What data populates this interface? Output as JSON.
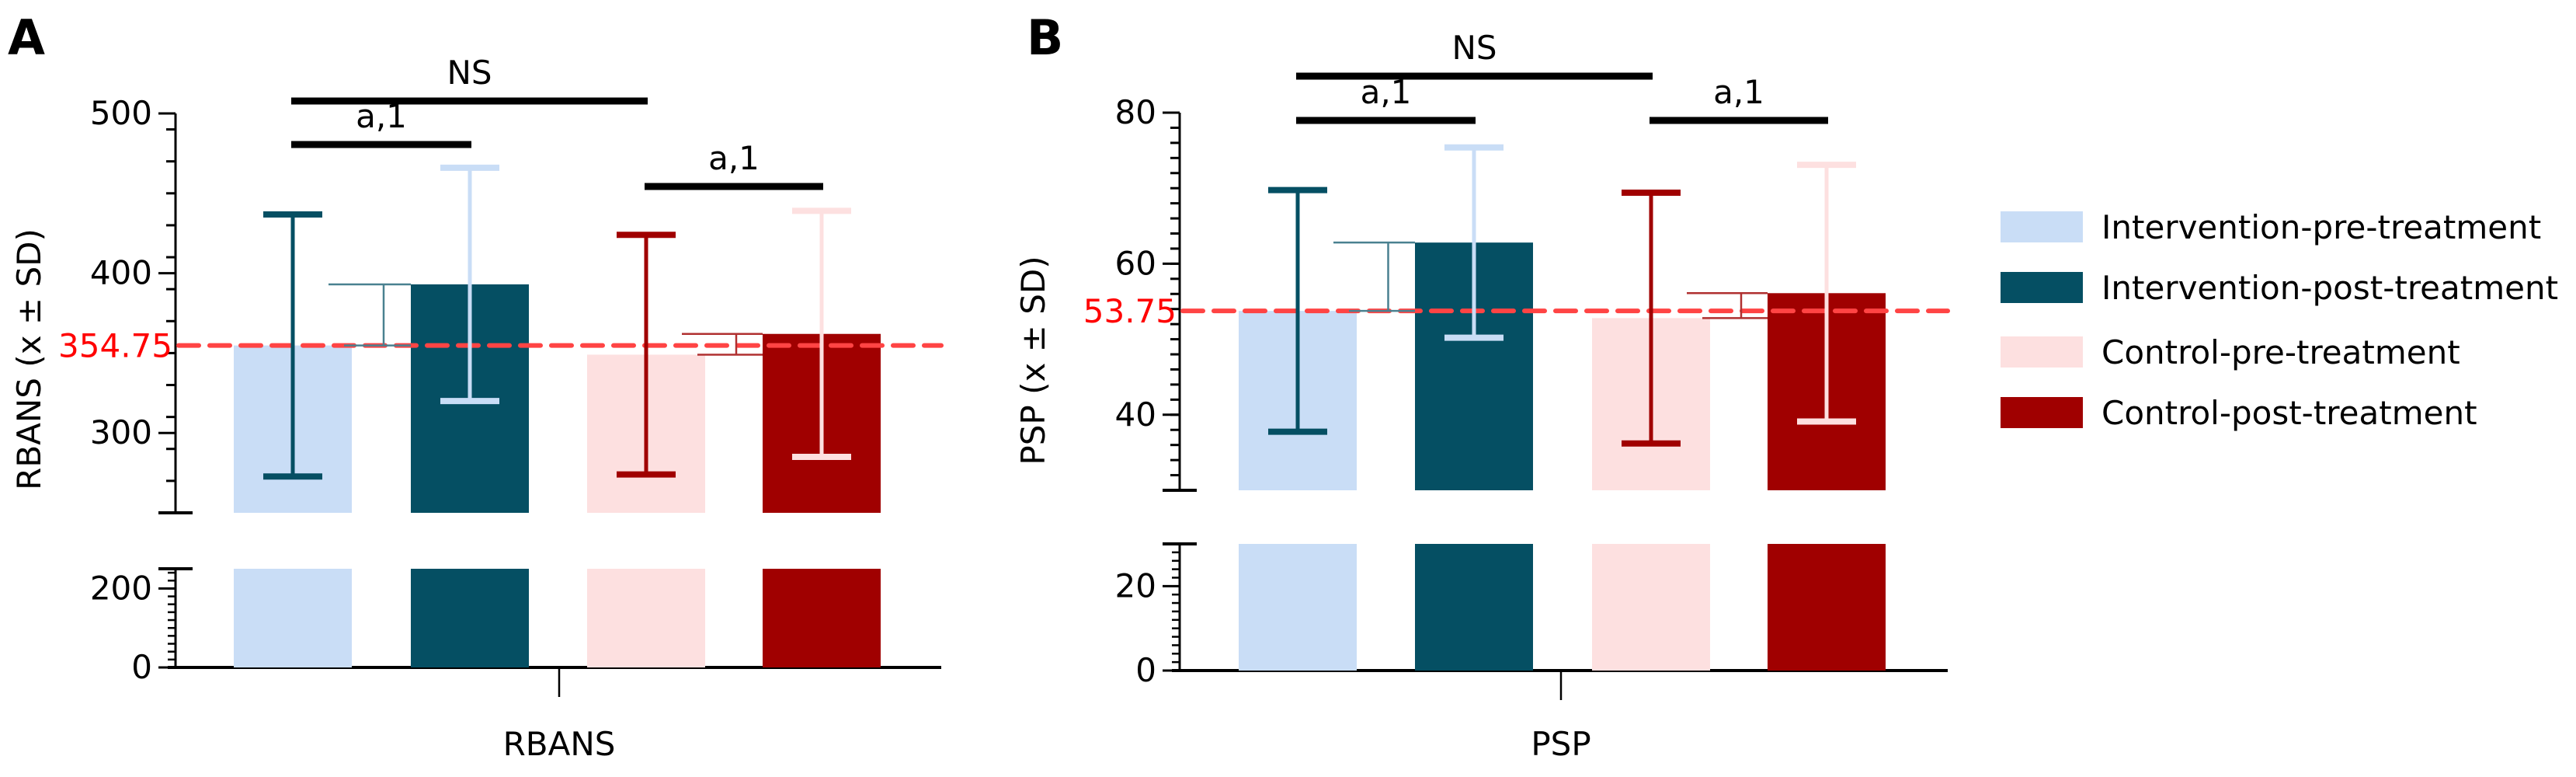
{
  "figure": {
    "legend": {
      "placement": "right",
      "items": [
        {
          "label": "Intervention-pre-treatment",
          "color": "#c9ddf6"
        },
        {
          "label": "Intervention-post-treatment",
          "color": "#054f63"
        },
        {
          "label": "Control-pre-treatment",
          "color": "#fde0e0"
        },
        {
          "label": "Control-post-treatment",
          "color": "#a00000"
        }
      ]
    }
  },
  "chart_data": [
    {
      "panel": "A",
      "type": "bar",
      "title": "",
      "xlabel": "RBANS",
      "ylabel": "RBANS (x ± SD)",
      "x_category": "RBANS",
      "broken_axis": true,
      "ylim_lower": [
        0,
        250
      ],
      "ylim_upper": [
        250,
        500
      ],
      "yticks_lower": [
        0,
        200
      ],
      "yticks_upper": [
        300,
        400,
        500
      ],
      "minor_tick_step_upper": 20,
      "minor_tick_step_lower": 20,
      "reference_line": {
        "value": 354.75,
        "label": "354.75",
        "color": "#ff4444"
      },
      "series": [
        {
          "name": "Intervention-pre-treatment",
          "mean": 354.75,
          "sd": 82,
          "bar_color": "#c9ddf6",
          "err_color": "#054f63"
        },
        {
          "name": "Intervention-post-treatment",
          "mean": 393,
          "sd": 73,
          "bar_color": "#054f63",
          "err_color": "#c9ddf6"
        },
        {
          "name": "Control-pre-treatment",
          "mean": 349,
          "sd": 75,
          "bar_color": "#fde0e0",
          "err_color": "#a00000"
        },
        {
          "name": "Control-post-treatment",
          "mean": 362,
          "sd": 77,
          "bar_color": "#a00000",
          "err_color": "#fde0e0"
        }
      ],
      "change_markers": [
        {
          "from": 0,
          "to": 1,
          "color": "#4a8190"
        },
        {
          "from": 2,
          "to": 3,
          "color": "#b03030"
        }
      ],
      "significance": [
        {
          "label": "NS",
          "from": 0,
          "to": 2,
          "level": 2
        },
        {
          "label": "a,1",
          "from": 0,
          "to": 1,
          "level": 1
        },
        {
          "label": "a,1",
          "from": 2,
          "to": 3,
          "level": 0
        }
      ]
    },
    {
      "panel": "B",
      "type": "bar",
      "title": "",
      "xlabel": "PSP",
      "ylabel": "PSP (x ± SD)",
      "x_category": "PSP",
      "broken_axis": true,
      "ylim_lower": [
        0,
        30
      ],
      "ylim_upper": [
        30,
        80
      ],
      "yticks_lower": [
        0,
        20
      ],
      "yticks_upper": [
        40,
        60,
        80
      ],
      "minor_tick_step_upper": 2,
      "minor_tick_step_lower": 2,
      "reference_line": {
        "value": 53.75,
        "label": "53.75",
        "color": "#ff4444"
      },
      "series": [
        {
          "name": "Intervention-pre-treatment",
          "mean": 53.75,
          "sd": 16,
          "bar_color": "#c9ddf6",
          "err_color": "#054f63"
        },
        {
          "name": "Intervention-post-treatment",
          "mean": 62.8,
          "sd": 12.6,
          "bar_color": "#054f63",
          "err_color": "#c9ddf6"
        },
        {
          "name": "Control-pre-treatment",
          "mean": 52.8,
          "sd": 16.6,
          "bar_color": "#fde0e0",
          "err_color": "#a00000"
        },
        {
          "name": "Control-post-treatment",
          "mean": 56.1,
          "sd": 17,
          "bar_color": "#a00000",
          "err_color": "#fde0e0"
        }
      ],
      "change_markers": [
        {
          "from": 0,
          "to": 1,
          "color": "#4a8190"
        },
        {
          "from": 2,
          "to": 3,
          "color": "#b03030"
        }
      ],
      "significance": [
        {
          "label": "NS",
          "from": 0,
          "to": 2,
          "level": 2
        },
        {
          "label": "a,1",
          "from": 0,
          "to": 1,
          "level": 1
        },
        {
          "label": "a,1",
          "from": 2,
          "to": 3,
          "level": 1
        }
      ]
    }
  ]
}
